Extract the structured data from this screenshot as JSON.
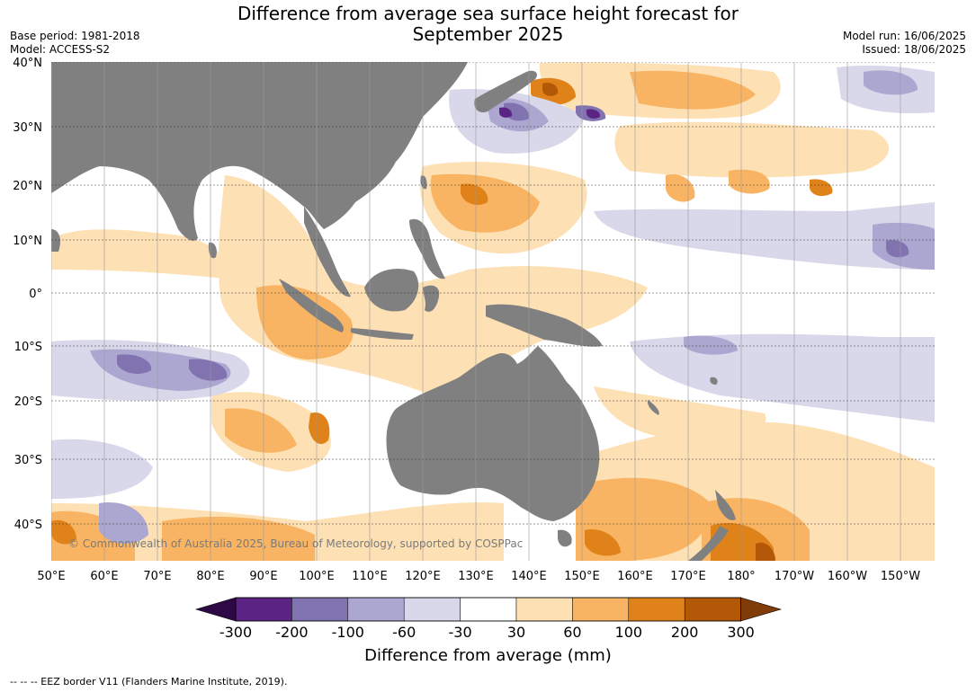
{
  "header": {
    "title_line1": "Difference from average sea surface height forecast for",
    "title_line2": "September 2025",
    "base_period": "Base period: 1981-2018",
    "model": "Model: ACCESS-S2",
    "model_run": "Model run: 16/06/2025",
    "issued": "Issued: 18/06/2025"
  },
  "map": {
    "lat_labels": [
      "40°N",
      "30°N",
      "20°N",
      "10°N",
      "0°",
      "10°S",
      "20°S",
      "30°S",
      "40°S"
    ],
    "lon_labels": [
      "50°E",
      "60°E",
      "70°E",
      "80°E",
      "90°E",
      "100°E",
      "110°E",
      "120°E",
      "130°E",
      "140°E",
      "150°E",
      "160°E",
      "170°E",
      "180°",
      "170°W",
      "160°W",
      "150°W"
    ],
    "credit": "© Commonwealth of Australia 2025, Bureau of Meteorology, supported by COSPPac",
    "land_color": "#808080",
    "ocean_color": "#ffffff"
  },
  "colorbar": {
    "ticks": [
      "-300",
      "-200",
      "-100",
      "-60",
      "-30",
      "30",
      "60",
      "100",
      "200",
      "300"
    ],
    "colors": [
      "#2d0a45",
      "#5a2384",
      "#8073b0",
      "#aca7d0",
      "#d8d8ea",
      "#ffffff",
      "#fde0b4",
      "#f8b462",
      "#e0821a",
      "#b35806",
      "#7f3b08"
    ],
    "label": "Difference from average (mm)"
  },
  "footnote": "--  --  -- EEZ border V11 (Flanders Marine Institute, 2019)."
}
